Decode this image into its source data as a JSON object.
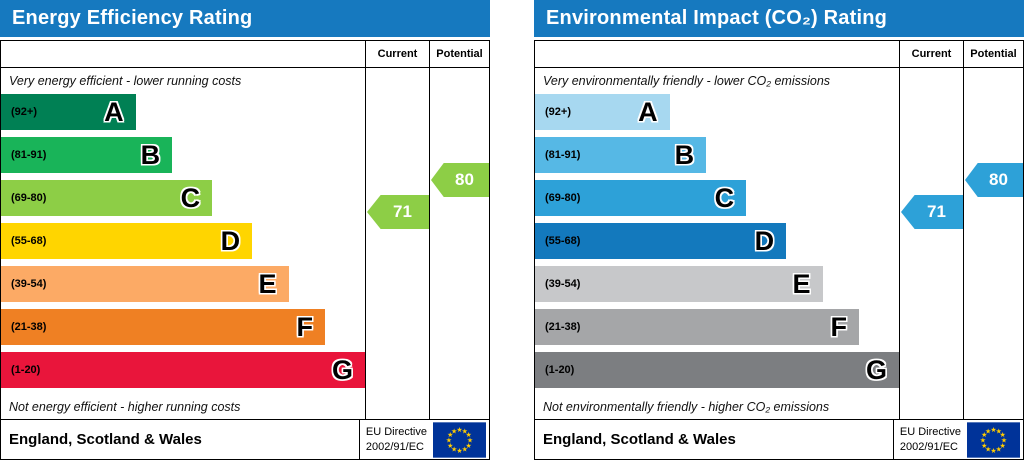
{
  "chart_data": [
    {
      "type": "bar",
      "subtype": "epc-rating-bands",
      "title": "Energy Efficiency Rating",
      "header_color": "#1679bf",
      "columns": {
        "current_label": "Current",
        "potential_label": "Potential"
      },
      "top_note": "Very energy efficient - lower running costs",
      "bottom_note": "Not energy efficient - higher running costs",
      "footer": {
        "region": "England, Scotland & Wales",
        "directive_line1": "EU Directive",
        "directive_line2": "2002/91/EC"
      },
      "bands": [
        {
          "letter": "A",
          "range_label": "(92+)",
          "min": 92,
          "max": 100,
          "color": "#008054",
          "width_pct": 37
        },
        {
          "letter": "B",
          "range_label": "(81-91)",
          "min": 81,
          "max": 91,
          "color": "#19b459",
          "width_pct": 47
        },
        {
          "letter": "C",
          "range_label": "(69-80)",
          "min": 69,
          "max": 80,
          "color": "#8dce46",
          "width_pct": 58
        },
        {
          "letter": "D",
          "range_label": "(55-68)",
          "min": 55,
          "max": 68,
          "color": "#ffd500",
          "width_pct": 69
        },
        {
          "letter": "E",
          "range_label": "(39-54)",
          "min": 39,
          "max": 54,
          "color": "#fcaa65",
          "width_pct": 79
        },
        {
          "letter": "F",
          "range_label": "(21-38)",
          "min": 21,
          "max": 38,
          "color": "#ef8023",
          "width_pct": 89
        },
        {
          "letter": "G",
          "range_label": "(1-20)",
          "min": 1,
          "max": 20,
          "color": "#e9153b",
          "width_pct": 100
        }
      ],
      "current": {
        "value": 71,
        "band": "C",
        "color": "#8dce46"
      },
      "potential": {
        "value": 80,
        "band": "C",
        "color": "#8dce46"
      }
    },
    {
      "type": "bar",
      "subtype": "epc-rating-bands",
      "title": "Environmental Impact (CO₂) Rating",
      "header_color": "#1679bf",
      "columns": {
        "current_label": "Current",
        "potential_label": "Potential"
      },
      "top_note": "Very environmentally friendly - lower CO₂ emissions",
      "bottom_note": "Not environmentally friendly - higher CO₂ emissions",
      "footer": {
        "region": "England, Scotland & Wales",
        "directive_line1": "EU Directive",
        "directive_line2": "2002/91/EC"
      },
      "bands": [
        {
          "letter": "A",
          "range_label": "(92+)",
          "min": 92,
          "max": 100,
          "color": "#a7d8f0",
          "width_pct": 37
        },
        {
          "letter": "B",
          "range_label": "(81-91)",
          "min": 81,
          "max": 91,
          "color": "#56b8e5",
          "width_pct": 47
        },
        {
          "letter": "C",
          "range_label": "(69-80)",
          "min": 69,
          "max": 80,
          "color": "#2da1d8",
          "width_pct": 58
        },
        {
          "letter": "D",
          "range_label": "(55-68)",
          "min": 55,
          "max": 68,
          "color": "#1379bd",
          "width_pct": 69
        },
        {
          "letter": "E",
          "range_label": "(39-54)",
          "min": 39,
          "max": 54,
          "color": "#c7c8ca",
          "width_pct": 79
        },
        {
          "letter": "F",
          "range_label": "(21-38)",
          "min": 21,
          "max": 38,
          "color": "#a5a6a8",
          "width_pct": 89
        },
        {
          "letter": "G",
          "range_label": "(1-20)",
          "min": 1,
          "max": 20,
          "color": "#7c7e81",
          "width_pct": 100
        }
      ],
      "current": {
        "value": 71,
        "band": "C",
        "color": "#2da1d8"
      },
      "potential": {
        "value": 80,
        "band": "C",
        "color": "#2da1d8"
      }
    }
  ],
  "flag": {
    "background": "#003399",
    "star_color": "#ffcc00"
  }
}
